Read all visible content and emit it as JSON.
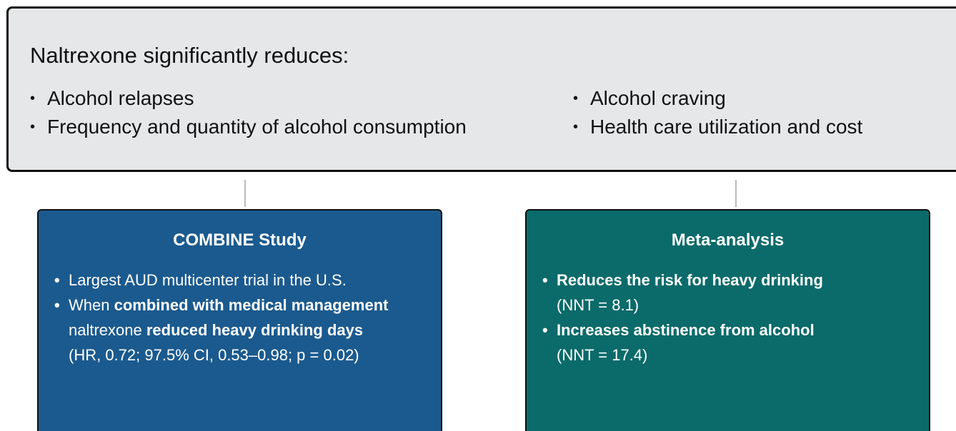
{
  "header": {
    "title": "Naltrexone significantly reduces:",
    "bullets": [
      "Alcohol relapses",
      "Frequency and quantity of alcohol consumption",
      "Alcohol craving",
      "Health care utilization and cost"
    ]
  },
  "boxes": [
    {
      "title": "COMBINE Study",
      "color": "#1b5a8e",
      "bullets": [
        {
          "parts": [
            {
              "text": "Largest AUD multicenter trial in the U.S.",
              "bold": false
            }
          ]
        },
        {
          "parts": [
            {
              "text": "When",
              "bold": false
            },
            {
              "text": "combined with medical management",
              "bold": true
            },
            {
              "text": "naltrexone",
              "bold": false
            },
            {
              "text": "reduced heavy drinking days",
              "bold": true
            }
          ],
          "note": "(HR, 0.72; 97.5% CI, 0.53–0.98; p = 0.02)"
        }
      ]
    },
    {
      "title": "Meta-analysis",
      "color": "#0b6a6a",
      "bullets": [
        {
          "parts": [
            {
              "text": "Reduces the risk for heavy drinking",
              "bold": true
            }
          ],
          "note": "(NNT = 8.1)"
        },
        {
          "parts": [
            {
              "text": "Increases abstinence from alcohol",
              "bold": true
            }
          ],
          "note": "(NNT = 17.4)"
        }
      ]
    }
  ]
}
